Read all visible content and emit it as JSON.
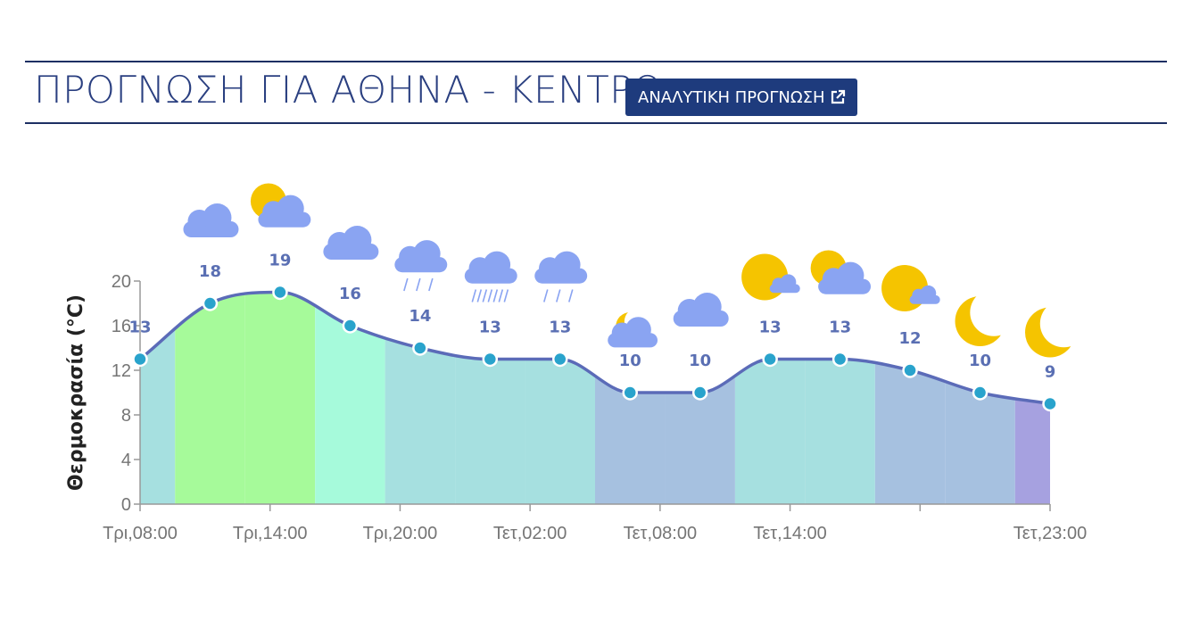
{
  "header": {
    "title": "ΠΡΟΓΝΩΣΗ ΓΙΑ ΑΘΗΝΑ - ΚΕΝΤΡΟ",
    "button_label": "ΑΝΑΛΥΤΙΚΗ ΠΡΟΓΝΩΣΗ"
  },
  "chart_data": {
    "type": "area",
    "ylabel": "Θερμοκρασία (°C)",
    "ylim": [
      0,
      20
    ],
    "y_ticks": [
      0,
      4,
      8,
      12,
      16,
      20
    ],
    "x_ticks": [
      "Τρι,08:00",
      "Τρι,14:00",
      "Τρι,20:00",
      "Τετ,02:00",
      "Τετ,08:00",
      "Τετ,14:00",
      "",
      "Τετ,23:00"
    ],
    "points": [
      {
        "time": "Τρι,08:00",
        "temp": 13,
        "icon": "none"
      },
      {
        "time": "Τρι,11:00",
        "temp": 18,
        "icon": "cloudy-icon"
      },
      {
        "time": "Τρι,14:00",
        "temp": 19,
        "icon": "sun-cloud-icon"
      },
      {
        "time": "Τρι,17:00",
        "temp": 16,
        "icon": "cloudy-icon"
      },
      {
        "time": "Τρι,20:00",
        "temp": 14,
        "icon": "rain-icon"
      },
      {
        "time": "Τρι,23:00",
        "temp": 13,
        "icon": "heavy-rain-icon"
      },
      {
        "time": "Τετ,02:00",
        "temp": 13,
        "icon": "rain-icon"
      },
      {
        "time": "Τετ,05:00",
        "temp": 10,
        "icon": "moon-cloud-icon"
      },
      {
        "time": "Τετ,08:00",
        "temp": 10,
        "icon": "cloudy-icon"
      },
      {
        "time": "Τετ,11:00",
        "temp": 13,
        "icon": "sun-small-cloud-icon"
      },
      {
        "time": "Τετ,14:00",
        "temp": 13,
        "icon": "sun-cloud-icon"
      },
      {
        "time": "Τετ,17:00",
        "temp": 12,
        "icon": "sun-small-cloud-icon"
      },
      {
        "time": "Τετ,20:00",
        "temp": 10,
        "icon": "moon-icon"
      },
      {
        "time": "Τετ,23:00",
        "temp": 9,
        "icon": "moon-icon"
      }
    ],
    "grid": false,
    "colors": {
      "line": "#5b6bb8",
      "marker": "#29a3cc",
      "label": "#5a6fb3",
      "cloud": "#8aa4f2",
      "sun": "#f5c400",
      "band_9": "#a6a1e0",
      "band_10": "#a6c1e0",
      "band_12": "#a6c1e0",
      "band_13": "#a6e0e0",
      "band_14": "#a6e0e0",
      "band_16": "#a6fadb",
      "band_18": "#a6fa9a",
      "band_19": "#a6fa9a"
    }
  }
}
